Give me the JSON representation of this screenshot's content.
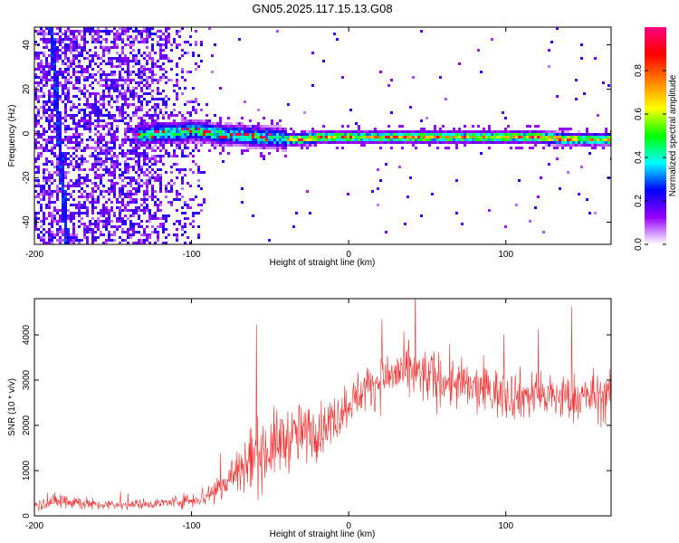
{
  "title": "GN05.2025.117.15.13.G08",
  "chart_data": [
    {
      "type": "heatmap",
      "xlabel": "Height of straight line (km)",
      "ylabel": "Frequency (Hz)",
      "xlim": [
        -200,
        167
      ],
      "ylim": [
        -50,
        48
      ],
      "xticks": [
        -200,
        -100,
        0,
        100
      ],
      "yticks": [
        -40,
        -20,
        0,
        20,
        40
      ],
      "ridge": {
        "x": [
          -130,
          -120,
          -110,
          -100,
          -90,
          -80,
          -70,
          -60,
          -50,
          -40,
          -30,
          -20,
          -10,
          0,
          20,
          40,
          60,
          80,
          100,
          120,
          140,
          160,
          167
        ],
        "y": [
          0,
          1,
          1,
          2,
          1,
          0,
          0,
          -1,
          -1,
          -2,
          -2,
          -1,
          -1,
          -1,
          -1,
          -1,
          -1,
          -1,
          -1,
          -1,
          -2,
          -2,
          -2
        ]
      },
      "streak": {
        "x": [
          -190,
          -180
        ],
        "y": [
          48,
          -50
        ]
      },
      "colorbar": {
        "label": "Normalized spectral amplitude",
        "range": [
          0,
          1
        ],
        "ticks": [
          "0.0",
          "0.2",
          "0.4",
          "0.6",
          "0.8"
        ],
        "colors": [
          "#ffffff",
          "#9400ff",
          "#0000ff",
          "#00ffff",
          "#00ff00",
          "#ffff00",
          "#ff8000",
          "#ff0000",
          "#ff0080"
        ]
      }
    },
    {
      "type": "line",
      "xlabel": "Height of straight line (km)",
      "ylabel": "SNR (10 * v/v)",
      "xlim": [
        -200,
        167
      ],
      "ylim": [
        0,
        4800
      ],
      "xticks": [
        -200,
        -100,
        0,
        100
      ],
      "yticks": [
        0,
        1000,
        2000,
        3000,
        4000
      ],
      "color": "#ee3333",
      "envelope": {
        "x": [
          -200,
          -180,
          -160,
          -140,
          -120,
          -100,
          -90,
          -80,
          -70,
          -60,
          -50,
          -40,
          -30,
          -20,
          -10,
          0,
          10,
          20,
          30,
          40,
          60,
          80,
          100,
          120,
          140,
          160,
          167
        ],
        "mean": [
          250,
          350,
          230,
          250,
          280,
          350,
          450,
          700,
          1000,
          1300,
          1500,
          1700,
          1800,
          1900,
          2100,
          2500,
          2800,
          3000,
          3150,
          3150,
          3000,
          2800,
          2700,
          2650,
          2600,
          2650,
          2600
        ],
        "spread": [
          100,
          200,
          100,
          100,
          100,
          150,
          250,
          400,
          600,
          700,
          700,
          650,
          600,
          550,
          500,
          450,
          450,
          500,
          550,
          550,
          550,
          500,
          500,
          500,
          500,
          500,
          500
        ]
      }
    }
  ]
}
